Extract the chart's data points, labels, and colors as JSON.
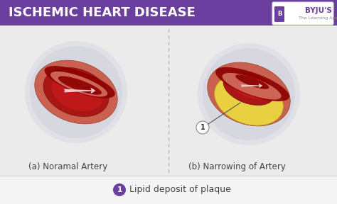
{
  "title": "ISCHEMIC HEART DISEASE",
  "title_bg_color": "#6b3fa0",
  "title_text_color": "#ffffff",
  "main_bg_color": "#ebebeb",
  "label_a": "(a) Noramal Artery",
  "label_b": "(b) Narrowing of Artery",
  "legend_number": "1",
  "legend_text": "Lipid deposit of plaque",
  "legend_circle_color": "#6b3fa0",
  "byju_text": "BYJU'S",
  "byju_subtext": "The Learning App",
  "byju_color": "#6b3fa0",
  "dotted_line_color": "#bbbbbb",
  "circle_bg_color": "#e2e2e8",
  "artery_outer_color": "#c96050",
  "artery_mid_color": "#d47060",
  "artery_inner_color": "#aa1515",
  "artery_dark_color": "#8b0000",
  "arrow_color": "#f0c8c8",
  "plaque_color": "#e8d040",
  "plaque_dark_color": "#c8a820",
  "annotation_line_color": "#555555",
  "label_text_color": "#444444",
  "footer_bg_color": "#f5f5f5",
  "footer_border_color": "#cccccc"
}
